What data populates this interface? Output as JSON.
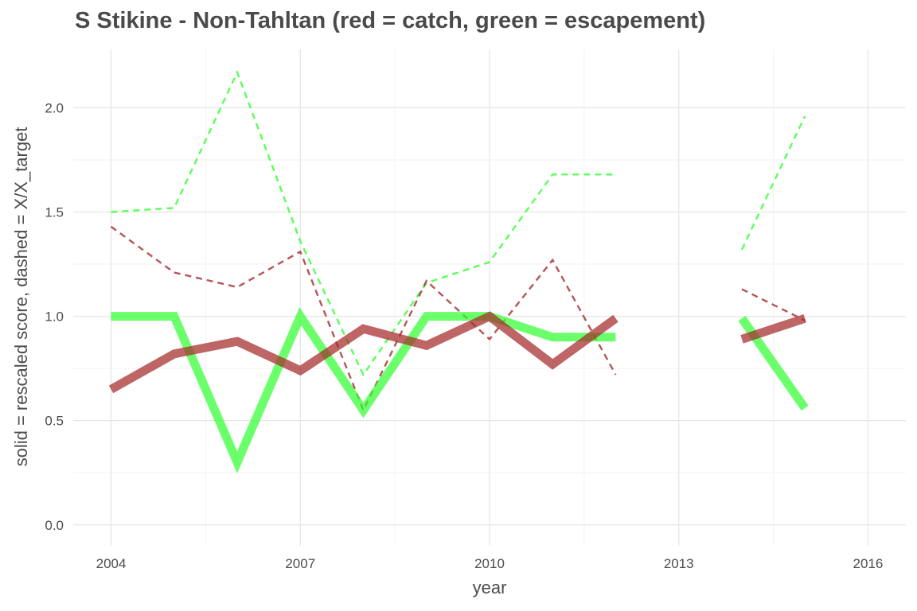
{
  "chart_data": {
    "type": "line",
    "title": "S Stikine - Non-Tahltan (red = catch, green = escapement)",
    "xlabel": "year",
    "ylabel": "solid = rescaled score, dashed = X/X_target",
    "xlim": [
      2003.4,
      2016.6
    ],
    "ylim": [
      -0.1,
      2.28
    ],
    "x_ticks": [
      2004,
      2007,
      2010,
      2013,
      2016
    ],
    "y_ticks": [
      0.0,
      0.5,
      1.0,
      1.5,
      2.0
    ],
    "y_tick_labels": [
      "0.0",
      "0.5",
      "1.0",
      "1.5",
      "2.0"
    ],
    "grid": true,
    "legend": "none",
    "colors": {
      "catch": "#a52a2a",
      "escapement": "#33ff33",
      "grid": "#e6e6e6"
    },
    "series": [
      {
        "id": "escapement-score",
        "style": "solid",
        "color_key": "escapement",
        "x": [
          2004,
          2005,
          2006,
          2007,
          2008,
          2009,
          2010,
          2011,
          2012,
          null,
          2014,
          2015
        ],
        "y": [
          1.0,
          1.0,
          0.3,
          1.0,
          0.55,
          1.0,
          1.0,
          0.9,
          0.9,
          null,
          0.99,
          0.56
        ]
      },
      {
        "id": "catch-score",
        "style": "solid",
        "color_key": "catch",
        "x": [
          2004,
          2005,
          2006,
          2007,
          2008,
          2009,
          2010,
          2011,
          2012,
          null,
          2014,
          2015
        ],
        "y": [
          0.65,
          0.82,
          0.88,
          0.74,
          0.94,
          0.86,
          1.0,
          0.77,
          0.99,
          null,
          0.89,
          0.99
        ]
      },
      {
        "id": "escapement-ratio",
        "style": "dashed",
        "color_key": "escapement",
        "x": [
          2004,
          2005,
          2006,
          2007,
          2008,
          2009,
          2010,
          2011,
          2012,
          null,
          2014,
          2015
        ],
        "y": [
          1.5,
          1.52,
          2.17,
          1.36,
          0.72,
          1.16,
          1.26,
          1.68,
          1.68,
          null,
          1.32,
          1.96
        ]
      },
      {
        "id": "catch-ratio",
        "style": "dashed",
        "color_key": "catch",
        "x": [
          2004,
          2005,
          2006,
          2007,
          2008,
          2009,
          2010,
          2011,
          2012,
          null,
          2014,
          2015
        ],
        "y": [
          1.43,
          1.21,
          1.14,
          1.31,
          0.55,
          1.17,
          0.89,
          1.27,
          0.72,
          null,
          1.13,
          0.98
        ]
      }
    ]
  }
}
